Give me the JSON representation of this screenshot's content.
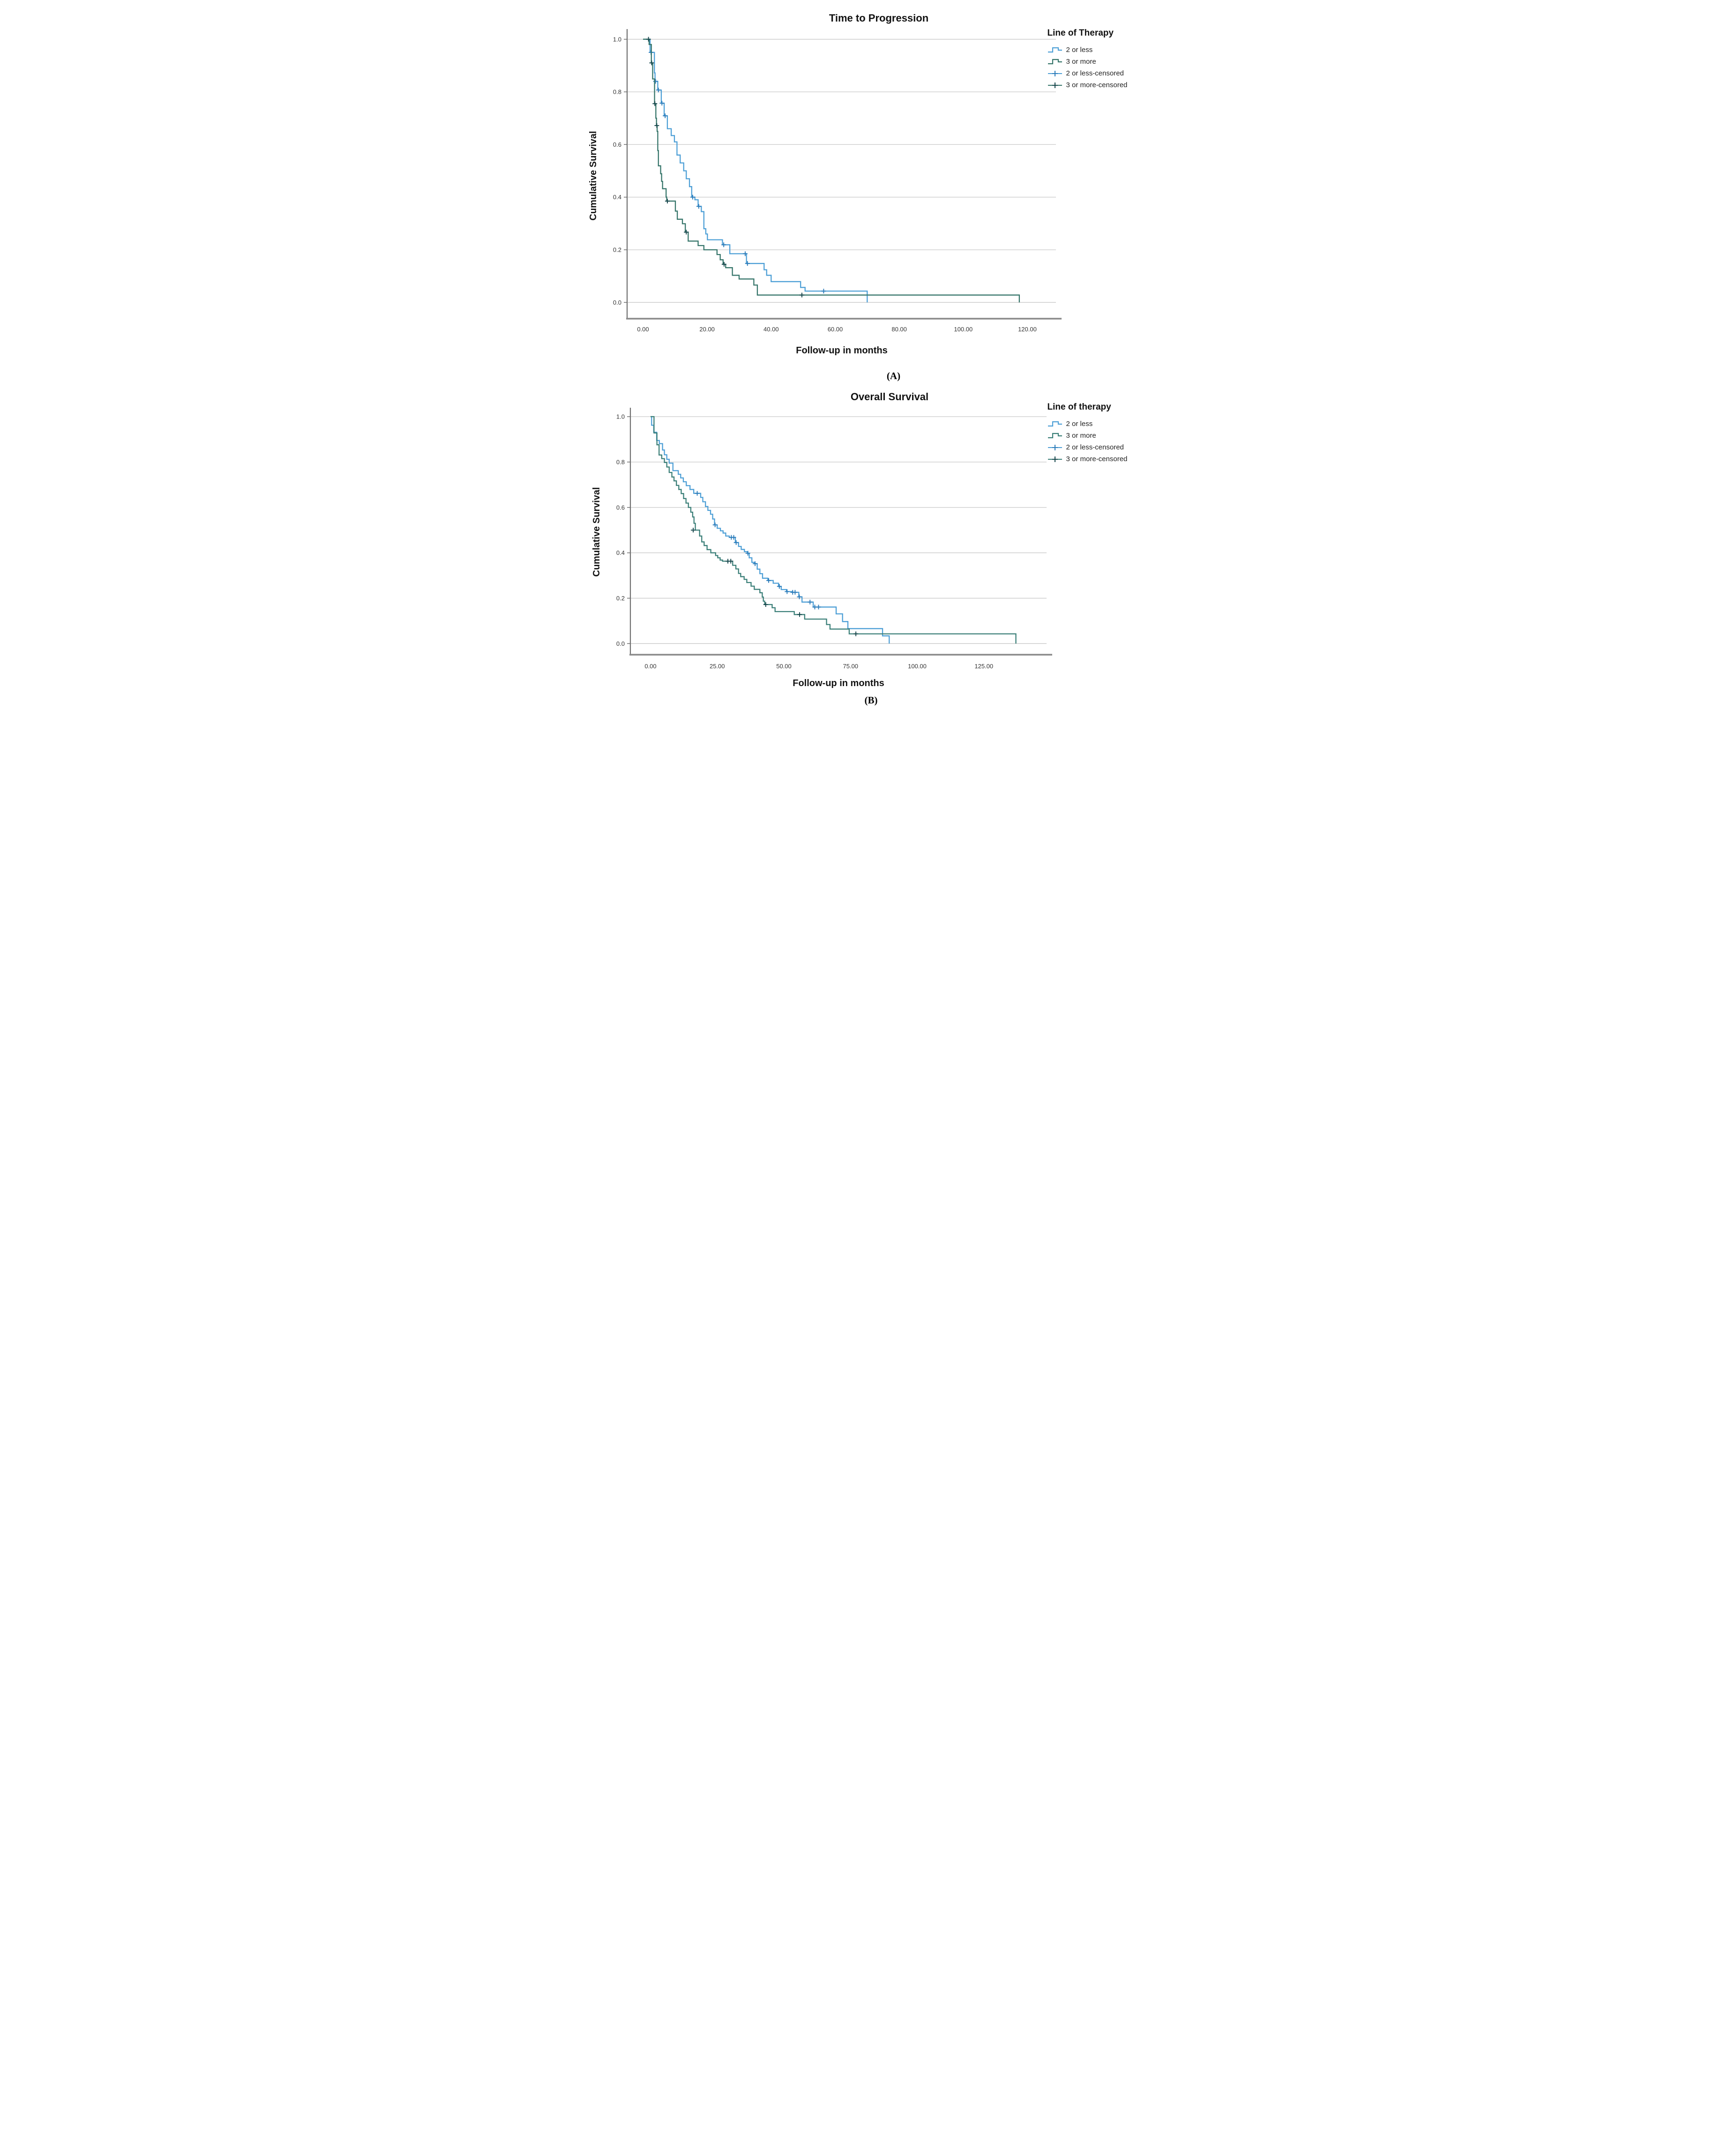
{
  "figure": {
    "captions": {
      "a": "(A)",
      "b": "(B)"
    }
  },
  "chart_data": [
    {
      "id": "time-to-progression",
      "type": "line",
      "subtype": "kaplan-meier-step",
      "title": "Time to Progression",
      "xlabel": "Follow-up in months",
      "ylabel": "Cumulative Survival",
      "legend_title": "Line of Therapy",
      "legend_position": "right-top",
      "grid": "horizontal",
      "xlim": [
        0,
        129
      ],
      "ylim": [
        0,
        1.0
      ],
      "xticks": {
        "values": [
          0,
          20,
          40,
          60,
          80,
          100,
          120
        ],
        "labels": [
          "0.00",
          "20.00",
          "40.00",
          "60.00",
          "80.00",
          "100.00",
          "120.00"
        ]
      },
      "yticks": {
        "values": [
          1.0,
          0.8,
          0.6,
          0.4,
          0.2,
          0.0
        ],
        "labels": [
          "1.0",
          "0.8",
          "0.6",
          "0.4",
          "0.2",
          "0.0"
        ]
      },
      "series": [
        {
          "name": "2 or less",
          "censored_name": "2 or less-censored",
          "color": "#4D9FD6",
          "censor_color": "#2B7BB9",
          "steps": [
            [
              0,
              1.0
            ],
            [
              2.2,
              0.95
            ],
            [
              3.55,
              0.872
            ],
            [
              3.75,
              0.84
            ],
            [
              4.6,
              0.807
            ],
            [
              5.7,
              0.757
            ],
            [
              6.6,
              0.709
            ],
            [
              7.6,
              0.66
            ],
            [
              8.8,
              0.634
            ],
            [
              9.8,
              0.61
            ],
            [
              10.6,
              0.56
            ],
            [
              11.6,
              0.53
            ],
            [
              12.7,
              0.5
            ],
            [
              13.5,
              0.47
            ],
            [
              14.5,
              0.44
            ],
            [
              15.2,
              0.4
            ],
            [
              16.2,
              0.39
            ],
            [
              17.2,
              0.365
            ],
            [
              18.2,
              0.345
            ],
            [
              19.0,
              0.28
            ],
            [
              19.6,
              0.26
            ],
            [
              20.1,
              0.238
            ],
            [
              24.8,
              0.219
            ],
            [
              27.1,
              0.185
            ],
            [
              32.3,
              0.148
            ],
            [
              37.8,
              0.124
            ],
            [
              38.6,
              0.103
            ],
            [
              40.0,
              0.079
            ],
            [
              49.2,
              0.057
            ],
            [
              50.6,
              0.043
            ],
            [
              70.0,
              0.0
            ]
          ],
          "censored": [
            [
              2.5,
              0.95
            ],
            [
              3.9,
              0.84
            ],
            [
              4.8,
              0.807
            ],
            [
              5.9,
              0.757
            ],
            [
              6.9,
              0.709
            ],
            [
              15.5,
              0.4
            ],
            [
              17.4,
              0.365
            ],
            [
              25.2,
              0.219
            ],
            [
              31.9,
              0.185
            ],
            [
              32.6,
              0.148
            ],
            [
              56.4,
              0.043
            ]
          ]
        },
        {
          "name": "3 or more",
          "censored_name": "3 or more-censored",
          "color": "#36756A",
          "censor_color": "#14454A",
          "steps": [
            [
              0,
              1.0
            ],
            [
              1.9,
              0.98
            ],
            [
              2.6,
              0.91
            ],
            [
              3.0,
              0.849
            ],
            [
              3.6,
              0.755
            ],
            [
              4.0,
              0.7
            ],
            [
              4.2,
              0.672
            ],
            [
              4.4,
              0.65
            ],
            [
              4.6,
              0.577
            ],
            [
              4.8,
              0.519
            ],
            [
              5.5,
              0.489
            ],
            [
              5.8,
              0.46
            ],
            [
              6.1,
              0.432
            ],
            [
              7.2,
              0.4
            ],
            [
              7.4,
              0.385
            ],
            [
              10.1,
              0.347
            ],
            [
              10.7,
              0.316
            ],
            [
              12.3,
              0.299
            ],
            [
              13.2,
              0.267
            ],
            [
              14.1,
              0.233
            ],
            [
              17.2,
              0.216
            ],
            [
              19.0,
              0.2
            ],
            [
              23.1,
              0.182
            ],
            [
              24.1,
              0.162
            ],
            [
              25.0,
              0.145
            ],
            [
              25.8,
              0.132
            ],
            [
              27.9,
              0.103
            ],
            [
              30.0,
              0.089
            ],
            [
              34.6,
              0.066
            ],
            [
              35.7,
              0.028
            ],
            [
              117.5,
              0.0
            ]
          ],
          "censored": [
            [
              1.7,
              1.0
            ],
            [
              2.7,
              0.91
            ],
            [
              3.7,
              0.755
            ],
            [
              4.3,
              0.672
            ],
            [
              7.6,
              0.385
            ],
            [
              13.5,
              0.267
            ],
            [
              25.3,
              0.145
            ],
            [
              49.6,
              0.028
            ]
          ]
        }
      ]
    },
    {
      "id": "overall-survival",
      "type": "line",
      "subtype": "kaplan-meier-step",
      "title": "Overall Survival",
      "xlabel": "Follow-up in months",
      "ylabel": "Cumulative Survival",
      "legend_title": "Line of therapy",
      "legend_position": "right-top",
      "grid": "horizontal",
      "xlim": [
        0,
        149
      ],
      "ylim": [
        0,
        1.0
      ],
      "xticks": {
        "values": [
          0,
          25,
          50,
          75,
          100,
          125
        ],
        "labels": [
          "0.00",
          "25.00",
          "50.00",
          "75.00",
          "100.00",
          "125.00"
        ]
      },
      "yticks": {
        "values": [
          1.0,
          0.8,
          0.6,
          0.4,
          0.2,
          0.0
        ],
        "labels": [
          "1.0",
          "0.8",
          "0.6",
          "0.4",
          "0.2",
          "0.0"
        ]
      },
      "series": [
        {
          "name": "2 or less",
          "censored_name": "2 or less-censored",
          "color": "#4D9FD6",
          "censor_color": "#2B7BB9",
          "steps": [
            [
              0,
              1.0
            ],
            [
              0.4,
              0.962
            ],
            [
              1.2,
              0.931
            ],
            [
              2.3,
              0.895
            ],
            [
              3.3,
              0.881
            ],
            [
              4.5,
              0.853
            ],
            [
              5.2,
              0.832
            ],
            [
              6.1,
              0.812
            ],
            [
              7.0,
              0.795
            ],
            [
              8.4,
              0.762
            ],
            [
              10.4,
              0.746
            ],
            [
              11.3,
              0.73
            ],
            [
              12.3,
              0.713
            ],
            [
              13.4,
              0.696
            ],
            [
              14.8,
              0.679
            ],
            [
              16.2,
              0.662
            ],
            [
              18.8,
              0.644
            ],
            [
              19.6,
              0.625
            ],
            [
              20.6,
              0.604
            ],
            [
              21.5,
              0.587
            ],
            [
              22.5,
              0.57
            ],
            [
              23.3,
              0.549
            ],
            [
              24.0,
              0.523
            ],
            [
              25.0,
              0.508
            ],
            [
              26.2,
              0.497
            ],
            [
              27.2,
              0.487
            ],
            [
              28.2,
              0.474
            ],
            [
              29.5,
              0.468
            ],
            [
              31.8,
              0.445
            ],
            [
              33.0,
              0.428
            ],
            [
              34.0,
              0.415
            ],
            [
              35.2,
              0.405
            ],
            [
              36.3,
              0.398
            ],
            [
              37.0,
              0.378
            ],
            [
              38.0,
              0.358
            ],
            [
              39.0,
              0.352
            ],
            [
              40.0,
              0.328
            ],
            [
              41.0,
              0.308
            ],
            [
              42.0,
              0.288
            ],
            [
              44.0,
              0.278
            ],
            [
              46.0,
              0.266
            ],
            [
              48.0,
              0.252
            ],
            [
              49.0,
              0.238
            ],
            [
              51.0,
              0.229
            ],
            [
              53.0,
              0.226
            ],
            [
              55.6,
              0.206
            ],
            [
              56.8,
              0.183
            ],
            [
              61.0,
              0.161
            ],
            [
              69.6,
              0.131
            ],
            [
              72.0,
              0.097
            ],
            [
              74.0,
              0.066
            ],
            [
              87.0,
              0.034
            ],
            [
              89.5,
              0.0
            ]
          ],
          "censored": [
            [
              17.5,
              0.662
            ],
            [
              24.2,
              0.523
            ],
            [
              30.3,
              0.468
            ],
            [
              31.2,
              0.468
            ],
            [
              32.1,
              0.445
            ],
            [
              36.5,
              0.398
            ],
            [
              39.2,
              0.352
            ],
            [
              44.3,
              0.278
            ],
            [
              48.3,
              0.252
            ],
            [
              51.2,
              0.229
            ],
            [
              53.3,
              0.226
            ],
            [
              54.2,
              0.226
            ],
            [
              55.8,
              0.206
            ],
            [
              59.8,
              0.183
            ],
            [
              61.6,
              0.161
            ],
            [
              63.0,
              0.161
            ]
          ]
        },
        {
          "name": "3 or more",
          "censored_name": "3 or more-censored",
          "color": "#3B7F78",
          "censor_color": "#14454A",
          "steps": [
            [
              0,
              1.0
            ],
            [
              1.3,
              0.928
            ],
            [
              2.4,
              0.876
            ],
            [
              3.2,
              0.831
            ],
            [
              4.2,
              0.815
            ],
            [
              5.2,
              0.798
            ],
            [
              6.1,
              0.778
            ],
            [
              7.0,
              0.754
            ],
            [
              8.0,
              0.734
            ],
            [
              8.8,
              0.717
            ],
            [
              9.7,
              0.697
            ],
            [
              10.6,
              0.679
            ],
            [
              11.5,
              0.661
            ],
            [
              12.4,
              0.639
            ],
            [
              13.3,
              0.619
            ],
            [
              14.2,
              0.6
            ],
            [
              15.1,
              0.579
            ],
            [
              15.8,
              0.558
            ],
            [
              16.3,
              0.53
            ],
            [
              16.8,
              0.5
            ],
            [
              18.4,
              0.474
            ],
            [
              19.2,
              0.448
            ],
            [
              20.1,
              0.432
            ],
            [
              21.2,
              0.414
            ],
            [
              22.6,
              0.4
            ],
            [
              24.4,
              0.388
            ],
            [
              25.2,
              0.378
            ],
            [
              26.1,
              0.368
            ],
            [
              27.0,
              0.363
            ],
            [
              30.8,
              0.345
            ],
            [
              32.0,
              0.329
            ],
            [
              33.0,
              0.309
            ],
            [
              33.8,
              0.295
            ],
            [
              35.1,
              0.283
            ],
            [
              36.1,
              0.269
            ],
            [
              37.7,
              0.253
            ],
            [
              38.9,
              0.239
            ],
            [
              41.0,
              0.224
            ],
            [
              41.9,
              0.205
            ],
            [
              42.3,
              0.187
            ],
            [
              42.8,
              0.172
            ],
            [
              45.6,
              0.158
            ],
            [
              46.7,
              0.141
            ],
            [
              53.9,
              0.128
            ],
            [
              57.8,
              0.108
            ],
            [
              66.0,
              0.084
            ],
            [
              67.3,
              0.064
            ],
            [
              74.5,
              0.043
            ],
            [
              137.0,
              0.0
            ]
          ],
          "censored": [
            [
              16.0,
              0.5
            ],
            [
              29.0,
              0.363
            ],
            [
              30.1,
              0.363
            ],
            [
              43.2,
              0.172
            ],
            [
              55.9,
              0.128
            ],
            [
              77.0,
              0.043
            ]
          ]
        }
      ]
    }
  ]
}
